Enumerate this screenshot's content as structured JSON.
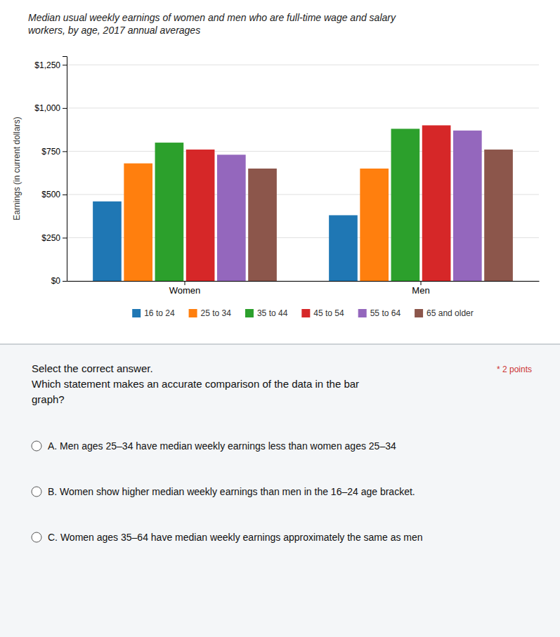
{
  "chart_data": {
    "type": "bar",
    "title": "Median usual weekly earnings of women and men who are full-time wage and salary\nworkers, by age, 2017 annual averages",
    "ylabel": "Earnings (in current dollars)",
    "categories": [
      "Women",
      "Men"
    ],
    "series": [
      {
        "name": "16 to 24",
        "values": [
          460,
          380
        ]
      },
      {
        "name": "25 to 34",
        "values": [
          680,
          650
        ]
      },
      {
        "name": "35 to 44",
        "values": [
          800,
          880
        ]
      },
      {
        "name": "45 to 54",
        "values": [
          760,
          900
        ]
      },
      {
        "name": "55 to 64",
        "values": [
          730,
          870
        ]
      },
      {
        "name": "65 and older",
        "values": [
          650,
          760
        ]
      }
    ],
    "ylim": [
      0,
      1300
    ],
    "yticks": [
      {
        "value": 0,
        "label": "$0"
      },
      {
        "value": 250,
        "label": "$250"
      },
      {
        "value": 500,
        "label": "$500"
      },
      {
        "value": 750,
        "label": "$750"
      },
      {
        "value": 1000,
        "label": "$1,000"
      },
      {
        "value": 1250,
        "label": "$1,250"
      }
    ],
    "grid": true,
    "legend": "bottom",
    "annotations": [
      "Select the correct answer.\nWhich statement makes an accurate comparison of the data in the bar\ngraph?",
      "* 2 points",
      "A. Men ages 25–34 have median weekly earnings less than women ages 25–34",
      "B. Women show higher median weekly earnings than men in the 16–24 age bracket.",
      "C. Women ages 35–64 have median weekly earnings approximately the same as men"
    ]
  }
}
